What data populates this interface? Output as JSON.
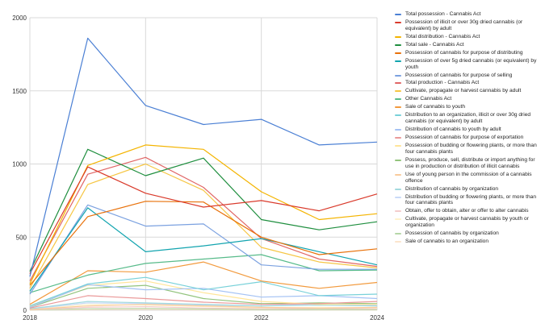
{
  "chart_data": {
    "type": "line",
    "title": "",
    "xlabel": "",
    "ylabel": "",
    "x": [
      2018,
      2019,
      2020,
      2021,
      2022,
      2023,
      2024
    ],
    "x_ticks": [
      "2018",
      "2020",
      "2022",
      "2024"
    ],
    "y_ticks": [
      "0",
      "500",
      "1000",
      "1500",
      "2000"
    ],
    "ylim": [
      0,
      2000
    ],
    "xlim": [
      2018,
      2024
    ],
    "grid": true,
    "legend_position": "right",
    "series": [
      {
        "name": "Total possession - Cannabis Act",
        "color": "#4a7fd4",
        "values": [
          230,
          1860,
          1400,
          1270,
          1305,
          1130,
          1150
        ]
      },
      {
        "name": "Possession of illicit or over 30g dried cannabis (or equivalent) by adult",
        "color": "#d93a2b",
        "values": [
          250,
          980,
          800,
          705,
          750,
          680,
          795
        ]
      },
      {
        "name": "Total distribution - Cannabis Act",
        "color": "#f4b400",
        "values": [
          180,
          990,
          1130,
          1100,
          810,
          620,
          660
        ]
      },
      {
        "name": "Total sale - Cannabis Act",
        "color": "#1e8e3e",
        "values": [
          265,
          1100,
          920,
          1040,
          620,
          550,
          605
        ]
      },
      {
        "name": "Possession of cannabis for purpose of distributing",
        "color": "#e8710a",
        "values": [
          170,
          640,
          745,
          740,
          500,
          380,
          420
        ]
      },
      {
        "name": "Possession of over 5g dried cannabis (or equivalent) by youth",
        "color": "#12a4af",
        "values": [
          130,
          700,
          400,
          440,
          490,
          400,
          310
        ]
      },
      {
        "name": "Possession of cannabis for purpose of selling",
        "color": "#7ba1e0",
        "values": [
          110,
          720,
          575,
          590,
          310,
          280,
          280
        ]
      },
      {
        "name": "Total production - Cannabis Act",
        "color": "#e06666",
        "values": [
          200,
          930,
          1045,
          840,
          490,
          350,
          300
        ]
      },
      {
        "name": "Cultivate, propagate or harvest cannabis by adult",
        "color": "#f6c644",
        "values": [
          150,
          860,
          1000,
          820,
          430,
          330,
          290
        ]
      },
      {
        "name": "Other Cannabis Act",
        "color": "#57bb8a",
        "values": [
          120,
          240,
          320,
          350,
          380,
          270,
          275
        ]
      },
      {
        "name": "Sale of cannabis to youth",
        "color": "#f29a3d",
        "values": [
          40,
          270,
          260,
          330,
          200,
          150,
          190
        ]
      },
      {
        "name": "Distribution to an organization, illicit or over 30g dried cannabis (or equivalent) by adult",
        "color": "#78d1d9",
        "values": [
          30,
          180,
          225,
          140,
          195,
          100,
          110
        ]
      },
      {
        "name": "Distribution of cannabis to youth by adult",
        "color": "#a4c2f4",
        "values": [
          20,
          175,
          140,
          150,
          90,
          100,
          80
        ]
      },
      {
        "name": "Possession of cannabis for purpose of exportation",
        "color": "#ea9999",
        "values": [
          15,
          100,
          80,
          55,
          40,
          45,
          60
        ]
      },
      {
        "name": "Possession of budding or flowering plants, or more than four cannabis plants",
        "color": "#ffe599",
        "values": [
          25,
          170,
          200,
          120,
          60,
          40,
          40
        ]
      },
      {
        "name": "Possess, produce, sell, distribute or import anything for use in production or distribution of illicit cannabis",
        "color": "#93c47d",
        "values": [
          20,
          150,
          170,
          80,
          45,
          50,
          45
        ]
      },
      {
        "name": "Use of young person in the commission of a cannabis offence",
        "color": "#f9cb9c",
        "values": [
          5,
          30,
          40,
          30,
          20,
          15,
          20
        ]
      },
      {
        "name": "Distribution of cannabis by organization",
        "color": "#a2d9de",
        "values": [
          10,
          60,
          50,
          40,
          30,
          35,
          30
        ]
      },
      {
        "name": "Distribution of budding or flowering plants, or more than four cannabis plants",
        "color": "#c9daf8",
        "values": [
          8,
          50,
          45,
          35,
          30,
          45,
          35
        ]
      },
      {
        "name": "Obtain, offer to obtain, alter or offer to alter cannabis",
        "color": "#f4cccc",
        "values": [
          3,
          20,
          25,
          15,
          10,
          12,
          10
        ]
      },
      {
        "name": "Cultivate, propagate or harvest cannabis by youth or organization",
        "color": "#fff2cc",
        "values": [
          5,
          40,
          35,
          25,
          15,
          20,
          15
        ]
      },
      {
        "name": "Possession of cannabis by organization",
        "color": "#b6d7a8",
        "values": [
          2,
          10,
          12,
          8,
          5,
          5,
          5
        ]
      },
      {
        "name": "Sale of cannabis to an organization",
        "color": "#fce5cd",
        "values": [
          1,
          5,
          6,
          4,
          3,
          2,
          2
        ]
      }
    ]
  }
}
